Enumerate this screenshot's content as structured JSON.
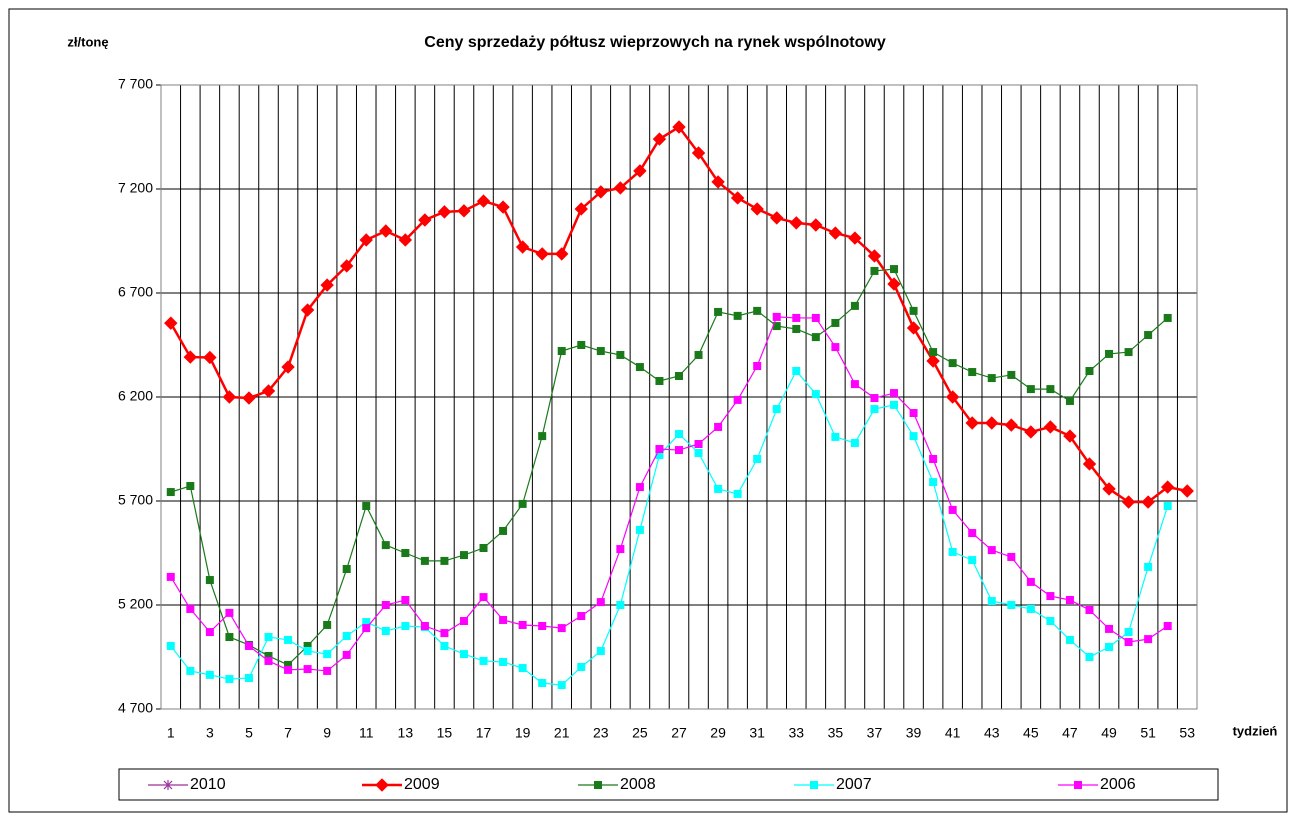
{
  "chart_data": {
    "type": "line",
    "title": "Ceny sprzedaży półtusz wieprzowych na rynek wspólnotowy",
    "y_label": "zł/tonę",
    "x_label": "tydzień",
    "categories": [
      1,
      null,
      3,
      null,
      5,
      null,
      7,
      null,
      9,
      null,
      11,
      null,
      13,
      null,
      15,
      null,
      17,
      null,
      19,
      null,
      21,
      null,
      23,
      null,
      25,
      null,
      27,
      null,
      29,
      null,
      31,
      null,
      33,
      null,
      35,
      null,
      37,
      null,
      39,
      null,
      41,
      null,
      43,
      null,
      45,
      null,
      47,
      null,
      49,
      null,
      51,
      null,
      53
    ],
    "ylim": [
      4700,
      7700
    ],
    "yticks": [
      {
        "value": 4700,
        "label": "4 700"
      },
      {
        "value": 5200,
        "label": "5 200"
      },
      {
        "value": 5700,
        "label": "5 700"
      },
      {
        "value": 6200,
        "label": "6 200"
      },
      {
        "value": 6700,
        "label": "6 700"
      },
      {
        "value": 7200,
        "label": "7 200"
      },
      {
        "value": 7700,
        "label": "7 700"
      }
    ],
    "grid": true,
    "legend": "bottom",
    "series": [
      {
        "name": "2010",
        "color": "#993399",
        "marker": "asterisk",
        "line_width": 1.2,
        "values": [
          null,
          null,
          null,
          null,
          null,
          null,
          null,
          null,
          null,
          null,
          null,
          null,
          null,
          null,
          null,
          null,
          null,
          null,
          null,
          null,
          null,
          null,
          null,
          null,
          null,
          null,
          null,
          null,
          null,
          null,
          null,
          null,
          null,
          null,
          null,
          null,
          null,
          null,
          null,
          null,
          null,
          null,
          null,
          null,
          null,
          null,
          null,
          null,
          null,
          null,
          null,
          null,
          null
        ]
      },
      {
        "name": "2009",
        "color": "#ff0000",
        "marker": "diamond",
        "line_width": 2.5,
        "values": [
          6555,
          6392,
          6390,
          6200,
          6195,
          6229,
          6344,
          6618,
          6738,
          6830,
          6955,
          6998,
          6955,
          7051,
          7090,
          7095,
          7142,
          7113,
          6921,
          6888,
          6888,
          7104,
          7186,
          7205,
          7287,
          7440,
          7498,
          7373,
          7234,
          7157,
          7104,
          7061,
          7037,
          7027,
          6988,
          6964,
          6878,
          6743,
          6532,
          6373,
          6200,
          6075,
          6075,
          6065,
          6032,
          6056,
          6012,
          5878,
          5758,
          5695,
          5695,
          5767,
          5748
        ]
      },
      {
        "name": "2008",
        "color": "#1a7a1a",
        "marker": "square",
        "line_width": 1.2,
        "values": [
          5743,
          5772,
          5320,
          5046,
          5008,
          4955,
          4912,
          5003,
          5104,
          5373,
          5676,
          5488,
          5450,
          5412,
          5412,
          5440,
          5474,
          5556,
          5686,
          6012,
          6421,
          6450,
          6421,
          6402,
          6344,
          6277,
          6301,
          6402,
          6609,
          6590,
          6614,
          6541,
          6527,
          6488,
          6556,
          6638,
          6806,
          6815,
          6614,
          6416,
          6363,
          6320,
          6291,
          6306,
          6238,
          6238,
          6181,
          6325,
          6407,
          6416,
          6498,
          6580,
          null
        ]
      },
      {
        "name": "2007",
        "color": "#00ffff",
        "marker": "square",
        "line_width": 1.2,
        "values": [
          5003,
          4883,
          4864,
          4844,
          4849,
          5046,
          5032,
          4979,
          4964,
          5051,
          5118,
          5075,
          5099,
          5094,
          5003,
          4964,
          4931,
          4926,
          4897,
          4825,
          4815,
          4902,
          4979,
          5200,
          5561,
          5921,
          6022,
          5931,
          5758,
          5734,
          5902,
          6142,
          6325,
          6214,
          6008,
          5979,
          6142,
          6162,
          6012,
          5791,
          5455,
          5416,
          5219,
          5200,
          5181,
          5123,
          5032,
          4950,
          4998,
          5070,
          5383,
          5676,
          null
        ]
      },
      {
        "name": "2006",
        "color": "#ff00ff",
        "marker": "square",
        "line_width": 1.2,
        "values": [
          5335,
          5181,
          5070,
          5162,
          5003,
          4931,
          4888,
          4892,
          4883,
          4960,
          5089,
          5200,
          5224,
          5099,
          5065,
          5123,
          5238,
          5128,
          5104,
          5099,
          5089,
          5147,
          5214,
          5469,
          5767,
          5950,
          5945,
          5974,
          6056,
          6186,
          6349,
          6585,
          6580,
          6580,
          6440,
          6262,
          6195,
          6219,
          6123,
          5902,
          5657,
          5546,
          5464,
          5431,
          5311,
          5243,
          5224,
          5176,
          5085,
          5022,
          5036,
          5099,
          null
        ]
      }
    ]
  }
}
